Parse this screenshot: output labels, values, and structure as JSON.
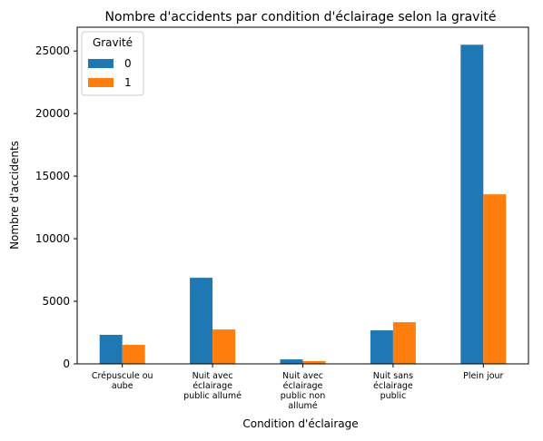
{
  "chart_data": {
    "type": "bar",
    "title": "Nombre d'accidents par condition d'éclairage selon la gravité",
    "x_label": "Condition d'éclairage",
    "y_label": "Nombre d'accidents",
    "categories": [
      "Crépuscule ou\naube",
      "Nuit avec\néclairage\npublic allumé",
      "Nuit avec\néclairage\npublic non\nallumé",
      "Nuit sans\néclairage\npublic",
      "Plein jour"
    ],
    "legend_title": "Gravité",
    "legend": "upper left",
    "series": [
      {
        "name": "0",
        "color": "#1f77b4",
        "values": [
          2320,
          6880,
          360,
          2680,
          25500
        ]
      },
      {
        "name": "1",
        "color": "#ff7f0e",
        "values": [
          1520,
          2750,
          220,
          3330,
          13550
        ]
      }
    ],
    "ylim": [
      0,
      26900
    ],
    "yticks": [
      0,
      5000,
      10000,
      15000,
      20000,
      25000
    ],
    "grid": false
  }
}
